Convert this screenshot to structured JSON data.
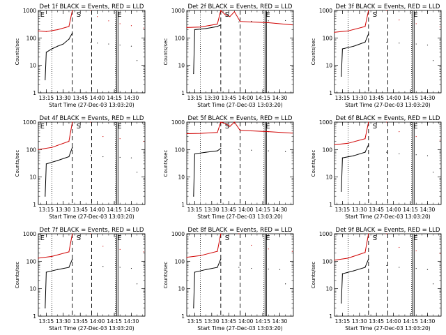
{
  "chart_data": [
    {
      "type": "line",
      "title": "Det 1f BLACK = Events, RED = LLD",
      "xlabel": "Start Time (27-Dec-03 13:03:20)",
      "ylabel": "Counts/sec",
      "yscale": "log",
      "ylim": [
        1,
        1000
      ],
      "xlim": [
        "13:08",
        "14:42"
      ],
      "xticks": [
        "13:15",
        "13:30",
        "13:45",
        "14:00",
        "14:15",
        "14:30"
      ],
      "yticks": [
        "1",
        "10",
        "100",
        "1000"
      ],
      "markers": [
        {
          "label": "E",
          "time": "13:09"
        },
        {
          "label": "S",
          "time": "13:41"
        },
        {
          "label": "E",
          "time": "14:17"
        }
      ],
      "dotted_lines": [
        "13:20",
        "14:16"
      ],
      "dashed_lines": [
        "13:38",
        "13:55"
      ],
      "solid_lines": [
        "14:17"
      ],
      "series": [
        {
          "name": "Events",
          "color": "#000000",
          "start": "13:14",
          "gap": [
            "13:39",
            "13:54"
          ],
          "x": [
            "13:14",
            "13:15",
            "13:20",
            "13:25",
            "13:30",
            "13:35",
            "13:38",
            "13:54",
            "14:00",
            "14:10",
            "14:20",
            "14:30",
            "14:35"
          ],
          "values": [
            3,
            30,
            40,
            50,
            60,
            90,
            150,
            70,
            65,
            60,
            55,
            50,
            15
          ]
        },
        {
          "name": "LLD",
          "color": "#d00000",
          "start": "13:08",
          "gap": [
            "13:39",
            "13:54"
          ],
          "x": [
            "13:08",
            "13:15",
            "13:25",
            "13:35",
            "13:38",
            "13:54",
            "14:00",
            "14:10",
            "14:20",
            "14:30",
            "14:41"
          ],
          "values": [
            180,
            170,
            200,
            260,
            1000,
            1000,
            600,
            420,
            330,
            280,
            230
          ]
        }
      ]
    },
    {
      "type": "line",
      "title": "Det 2f BLACK = Events, RED = LLD",
      "xlabel": "Start Time (27-Dec-03 13:03:20)",
      "ylabel": "Counts/sec",
      "yscale": "log",
      "ylim": [
        1,
        1000
      ],
      "xlim": [
        "13:08",
        "14:42"
      ],
      "xticks": [
        "13:15",
        "13:30",
        "13:45",
        "14:00",
        "14:15",
        "14:30"
      ],
      "yticks": [
        "1",
        "10",
        "100",
        "1000"
      ],
      "markers": [
        {
          "label": "S",
          "time": "13:41"
        },
        {
          "label": "E",
          "time": "14:17"
        }
      ],
      "dotted_lines": [
        "13:20",
        "14:16"
      ],
      "dashed_lines": [
        "13:38",
        "13:55"
      ],
      "solid_lines": [
        "14:17"
      ],
      "series": [
        {
          "name": "Events",
          "color": "#000000",
          "start": "13:14",
          "gap": [
            "13:39",
            "13:54"
          ],
          "x": [
            "13:14",
            "13:15",
            "13:25",
            "13:35",
            "13:38",
            "13:54",
            "14:05",
            "14:20",
            "14:35"
          ],
          "values": [
            5,
            200,
            220,
            260,
            300,
            380,
            400,
            420,
            430
          ]
        },
        {
          "name": "LLD",
          "color": "#d00000",
          "start": "13:08",
          "gap": [],
          "x": [
            "13:08",
            "13:20",
            "13:35",
            "13:38",
            "13:42",
            "13:46",
            "13:50",
            "13:55",
            "14:05",
            "14:20",
            "14:41"
          ],
          "values": [
            240,
            250,
            320,
            1000,
            700,
            600,
            900,
            400,
            380,
            360,
            300
          ]
        }
      ]
    },
    {
      "type": "line",
      "title": "Det 3f BLACK = Events, RED = LLD",
      "xlabel": "Start Time (27-Dec-03 13:03:20)",
      "ylabel": "Counts/sec",
      "yscale": "log",
      "ylim": [
        1,
        1000
      ],
      "xlim": [
        "13:08",
        "14:42"
      ],
      "xticks": [
        "13:15",
        "13:30",
        "13:45",
        "14:00",
        "14:15",
        "14:30"
      ],
      "yticks": [
        "1",
        "10",
        "100",
        "1000"
      ],
      "markers": [
        {
          "label": "S",
          "time": "13:41"
        },
        {
          "label": "E",
          "time": "14:17"
        }
      ],
      "dotted_lines": [
        "13:20",
        "14:16"
      ],
      "dashed_lines": [
        "13:38",
        "13:55"
      ],
      "solid_lines": [
        "14:17"
      ],
      "series": [
        {
          "name": "Events",
          "color": "#000000",
          "start": "13:14",
          "gap": [
            "13:39",
            "13:54"
          ],
          "x": [
            "13:14",
            "13:15",
            "13:25",
            "13:35",
            "13:38",
            "13:54",
            "14:05",
            "14:20",
            "14:30",
            "14:35"
          ],
          "values": [
            4,
            40,
            50,
            70,
            140,
            70,
            65,
            60,
            55,
            15
          ]
        },
        {
          "name": "LLD",
          "color": "#d00000",
          "start": "13:08",
          "gap": [
            "13:39",
            "13:54"
          ],
          "x": [
            "13:08",
            "13:20",
            "13:35",
            "13:38",
            "13:54",
            "14:05",
            "14:20",
            "14:41"
          ],
          "values": [
            160,
            180,
            260,
            1000,
            1000,
            450,
            330,
            250
          ]
        }
      ]
    },
    {
      "type": "line",
      "title": "Det 4f BLACK = Events, RED = LLD",
      "xlabel": "Start Time (27-Dec-03 13:03:20)",
      "ylabel": "Counts/sec",
      "yscale": "log",
      "ylim": [
        1,
        1000
      ],
      "xlim": [
        "13:08",
        "14:42"
      ],
      "xticks": [
        "13:15",
        "13:30",
        "13:45",
        "14:00",
        "14:15",
        "14:30"
      ],
      "yticks": [
        "1",
        "10",
        "100",
        "1000"
      ],
      "markers": [
        {
          "label": "E",
          "time": "13:09"
        },
        {
          "label": "S",
          "time": "13:41"
        },
        {
          "label": "E",
          "time": "14:17"
        }
      ],
      "dotted_lines": [
        "13:20",
        "14:16"
      ],
      "dashed_lines": [
        "13:38",
        "13:55"
      ],
      "solid_lines": [
        "14:17"
      ],
      "series": [
        {
          "name": "Events",
          "color": "#000000",
          "start": "13:14",
          "gap": [
            "13:39",
            "13:54"
          ],
          "x": [
            "13:14",
            "13:15",
            "13:25",
            "13:35",
            "13:38",
            "13:54",
            "14:05",
            "14:20",
            "14:30",
            "14:35"
          ],
          "values": [
            2,
            30,
            40,
            55,
            120,
            60,
            55,
            52,
            50,
            15
          ]
        },
        {
          "name": "LLD",
          "color": "#d00000",
          "start": "13:08",
          "gap": [
            "13:39",
            "13:54"
          ],
          "x": [
            "13:08",
            "13:20",
            "13:35",
            "13:38",
            "13:54",
            "14:05",
            "14:20",
            "14:41"
          ],
          "values": [
            100,
            120,
            200,
            1000,
            1000,
            300,
            250,
            200
          ]
        }
      ]
    },
    {
      "type": "line",
      "title": "Det 5f BLACK = Events, RED = LLD",
      "xlabel": "Start Time (27-Dec-03 13:03:20)",
      "ylabel": "Counts/sec",
      "yscale": "log",
      "ylim": [
        1,
        1000
      ],
      "xlim": [
        "13:08",
        "14:42"
      ],
      "xticks": [
        "13:15",
        "13:30",
        "13:45",
        "14:00",
        "14:15",
        "14:30"
      ],
      "yticks": [
        "1",
        "10",
        "100",
        "1000"
      ],
      "markers": [
        {
          "label": "S",
          "time": "13:41"
        },
        {
          "label": "E",
          "time": "14:17"
        }
      ],
      "dotted_lines": [
        "13:20",
        "14:16"
      ],
      "dashed_lines": [
        "13:38",
        "13:55"
      ],
      "solid_lines": [
        "14:17"
      ],
      "series": [
        {
          "name": "Events",
          "color": "#000000",
          "start": "13:14",
          "gap": [
            "13:39",
            "13:54"
          ],
          "x": [
            "13:14",
            "13:15",
            "13:25",
            "13:35",
            "13:38",
            "13:54",
            "14:05",
            "14:20",
            "14:35"
          ],
          "values": [
            2,
            70,
            80,
            90,
            110,
            100,
            95,
            90,
            85
          ]
        },
        {
          "name": "LLD",
          "color": "#d00000",
          "start": "13:08",
          "gap": [],
          "x": [
            "13:08",
            "13:20",
            "13:35",
            "13:38",
            "13:42",
            "13:46",
            "13:50",
            "13:55",
            "14:05",
            "14:20",
            "14:41"
          ],
          "values": [
            380,
            390,
            420,
            1000,
            900,
            700,
            1000,
            500,
            480,
            450,
            400
          ]
        }
      ]
    },
    {
      "type": "line",
      "title": "Det 6f BLACK = Events, RED = LLD",
      "xlabel": "Start Time (27-Dec-03 13:03:20)",
      "ylabel": "Counts/sec",
      "yscale": "log",
      "ylim": [
        1,
        1000
      ],
      "xlim": [
        "13:08",
        "14:42"
      ],
      "xticks": [
        "13:15",
        "13:30",
        "13:45",
        "14:00",
        "14:15",
        "14:30"
      ],
      "yticks": [
        "1",
        "10",
        "100",
        "1000"
      ],
      "markers": [
        {
          "label": "S",
          "time": "13:41"
        },
        {
          "label": "E",
          "time": "14:17"
        }
      ],
      "dotted_lines": [
        "13:20",
        "14:16"
      ],
      "dashed_lines": [
        "13:38",
        "13:55"
      ],
      "solid_lines": [
        "14:17"
      ],
      "series": [
        {
          "name": "Events",
          "color": "#000000",
          "start": "13:14",
          "gap": [
            "13:39",
            "13:54"
          ],
          "x": [
            "13:14",
            "13:15",
            "13:25",
            "13:35",
            "13:38",
            "13:54",
            "14:05",
            "14:20",
            "14:30",
            "14:35"
          ],
          "values": [
            3,
            50,
            60,
            80,
            150,
            80,
            70,
            65,
            60,
            15
          ]
        },
        {
          "name": "LLD",
          "color": "#d00000",
          "start": "13:08",
          "gap": [
            "13:39",
            "13:54"
          ],
          "x": [
            "13:08",
            "13:20",
            "13:35",
            "13:38",
            "13:54",
            "14:05",
            "14:20",
            "14:41"
          ],
          "values": [
            150,
            170,
            250,
            1000,
            1000,
            450,
            300,
            220
          ]
        }
      ]
    },
    {
      "type": "line",
      "title": "Det 7f BLACK = Events, RED = LLD",
      "xlabel": "Start Time (27-Dec-03 13:03:20)",
      "ylabel": "Counts/sec",
      "yscale": "log",
      "ylim": [
        1,
        1000
      ],
      "xlim": [
        "13:08",
        "14:42"
      ],
      "xticks": [
        "13:15",
        "13:30",
        "13:45",
        "14:00",
        "14:15",
        "14:30"
      ],
      "yticks": [
        "1",
        "10",
        "100",
        "1000"
      ],
      "markers": [
        {
          "label": "E",
          "time": "13:09"
        },
        {
          "label": "S",
          "time": "13:41"
        },
        {
          "label": "E",
          "time": "14:17"
        }
      ],
      "dotted_lines": [
        "13:20",
        "14:16"
      ],
      "dashed_lines": [
        "13:38",
        "13:55"
      ],
      "solid_lines": [
        "14:17"
      ],
      "series": [
        {
          "name": "Events",
          "color": "#000000",
          "start": "13:14",
          "gap": [
            "13:39",
            "13:54"
          ],
          "x": [
            "13:14",
            "13:15",
            "13:25",
            "13:35",
            "13:38",
            "13:54",
            "14:05",
            "14:20",
            "14:30",
            "14:35"
          ],
          "values": [
            2,
            40,
            50,
            60,
            120,
            70,
            65,
            60,
            55,
            15
          ]
        },
        {
          "name": "LLD",
          "color": "#d00000",
          "start": "13:08",
          "gap": [
            "13:39",
            "13:54"
          ],
          "x": [
            "13:08",
            "13:20",
            "13:35",
            "13:38",
            "13:54",
            "14:05",
            "14:20",
            "14:41"
          ],
          "values": [
            130,
            150,
            220,
            1000,
            1000,
            350,
            270,
            220
          ]
        }
      ]
    },
    {
      "type": "line",
      "title": "Det 8f BLACK = Events, RED = LLD",
      "xlabel": "Start Time (27-Dec-03 13:03:20)",
      "ylabel": "Counts/sec",
      "yscale": "log",
      "ylim": [
        1,
        1000
      ],
      "xlim": [
        "13:08",
        "14:42"
      ],
      "xticks": [
        "13:15",
        "13:30",
        "13:45",
        "14:00",
        "14:15",
        "14:30"
      ],
      "yticks": [
        "1",
        "10",
        "100",
        "1000"
      ],
      "markers": [
        {
          "label": "S",
          "time": "13:41"
        },
        {
          "label": "E",
          "time": "14:17"
        }
      ],
      "dotted_lines": [
        "13:20",
        "14:16"
      ],
      "dashed_lines": [
        "13:38",
        "13:55"
      ],
      "solid_lines": [
        "14:17"
      ],
      "series": [
        {
          "name": "Events",
          "color": "#000000",
          "start": "13:14",
          "gap": [
            "13:39",
            "13:54"
          ],
          "x": [
            "13:14",
            "13:15",
            "13:25",
            "13:35",
            "13:38",
            "13:54",
            "14:05",
            "14:20",
            "14:30",
            "14:35"
          ],
          "values": [
            2,
            40,
            50,
            60,
            120,
            60,
            55,
            52,
            50,
            15
          ]
        },
        {
          "name": "LLD",
          "color": "#d00000",
          "start": "13:08",
          "gap": [
            "13:39",
            "13:54"
          ],
          "x": [
            "13:08",
            "13:20",
            "13:35",
            "13:38",
            "13:54",
            "14:05",
            "14:20",
            "14:41"
          ],
          "values": [
            140,
            160,
            230,
            1000,
            1000,
            380,
            280,
            230
          ]
        }
      ]
    },
    {
      "type": "line",
      "title": "Det 9f BLACK = Events, RED = LLD",
      "xlabel": "Start Time (27-Dec-03 13:03:20)",
      "ylabel": "Counts/sec",
      "yscale": "log",
      "ylim": [
        1,
        1000
      ],
      "xlim": [
        "13:08",
        "14:42"
      ],
      "xticks": [
        "13:15",
        "13:30",
        "13:45",
        "14:00",
        "14:15",
        "14:30"
      ],
      "yticks": [
        "1",
        "10",
        "100",
        "1000"
      ],
      "markers": [
        {
          "label": "S",
          "time": "13:41"
        },
        {
          "label": "E",
          "time": "14:17"
        }
      ],
      "dotted_lines": [
        "13:20",
        "14:16"
      ],
      "dashed_lines": [
        "13:38",
        "13:55"
      ],
      "solid_lines": [
        "14:17"
      ],
      "series": [
        {
          "name": "Events",
          "color": "#000000",
          "start": "13:14",
          "gap": [
            "13:39",
            "13:54"
          ],
          "x": [
            "13:14",
            "13:15",
            "13:25",
            "13:35",
            "13:38",
            "13:54",
            "14:05",
            "14:20",
            "14:30",
            "14:35"
          ],
          "values": [
            3,
            35,
            45,
            60,
            120,
            70,
            60,
            55,
            50,
            15
          ]
        },
        {
          "name": "LLD",
          "color": "#d00000",
          "start": "13:08",
          "gap": [
            "13:39",
            "13:54"
          ],
          "x": [
            "13:08",
            "13:20",
            "13:35",
            "13:38",
            "13:54",
            "14:05",
            "14:20",
            "14:41"
          ],
          "values": [
            110,
            130,
            210,
            1000,
            1000,
            320,
            240,
            190
          ]
        }
      ]
    }
  ]
}
